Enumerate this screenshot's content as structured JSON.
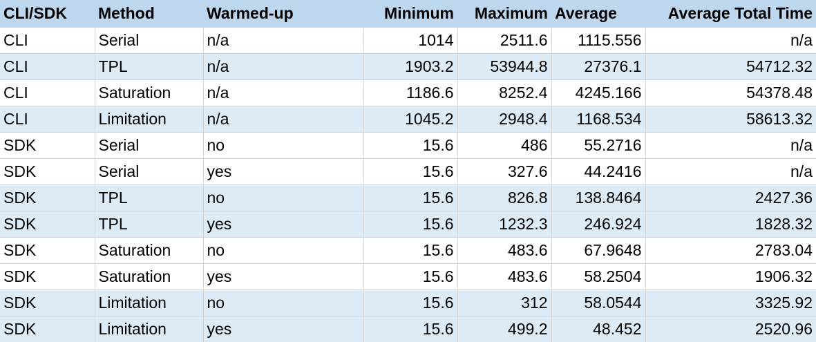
{
  "header": {
    "cols": [
      "CLI/SDK",
      "Method",
      "Warmed-up",
      "Minimum",
      "Maximum",
      "Average",
      "Average Total Time"
    ]
  },
  "rows": [
    {
      "cli_sdk": "CLI",
      "method": "Serial",
      "warmed": "n/a",
      "min": "1014",
      "max": "2511.6",
      "avg": "1115.556",
      "total": "n/a",
      "band": "white"
    },
    {
      "cli_sdk": "CLI",
      "method": "TPL",
      "warmed": "n/a",
      "min": "1903.2",
      "max": "53944.8",
      "avg": "27376.1",
      "total": "54712.32",
      "band": "blue"
    },
    {
      "cli_sdk": "CLI",
      "method": "Saturation",
      "warmed": "n/a",
      "min": "1186.6",
      "max": "8252.4",
      "avg": "4245.166",
      "total": "54378.48",
      "band": "white"
    },
    {
      "cli_sdk": "CLI",
      "method": "Limitation",
      "warmed": "n/a",
      "min": "1045.2",
      "max": "2948.4",
      "avg": "1168.534",
      "total": "58613.32",
      "band": "blue"
    },
    {
      "cli_sdk": "SDK",
      "method": "Serial",
      "warmed": "no",
      "min": "15.6",
      "max": "486",
      "avg": "55.2716",
      "total": "n/a",
      "band": "white"
    },
    {
      "cli_sdk": "SDK",
      "method": "Serial",
      "warmed": "yes",
      "min": "15.6",
      "max": "327.6",
      "avg": "44.2416",
      "total": "n/a",
      "band": "white"
    },
    {
      "cli_sdk": "SDK",
      "method": "TPL",
      "warmed": "no",
      "min": "15.6",
      "max": "826.8",
      "avg": "138.8464",
      "total": "2427.36",
      "band": "blue"
    },
    {
      "cli_sdk": "SDK",
      "method": "TPL",
      "warmed": "yes",
      "min": "15.6",
      "max": "1232.3",
      "avg": "246.924",
      "total": "1828.32",
      "band": "blue"
    },
    {
      "cli_sdk": "SDK",
      "method": "Saturation",
      "warmed": "no",
      "min": "15.6",
      "max": "483.6",
      "avg": "67.9648",
      "total": "2783.04",
      "band": "white"
    },
    {
      "cli_sdk": "SDK",
      "method": "Saturation",
      "warmed": "yes",
      "min": "15.6",
      "max": "483.6",
      "avg": "58.2504",
      "total": "1906.32",
      "band": "white"
    },
    {
      "cli_sdk": "SDK",
      "method": "Limitation",
      "warmed": "no",
      "min": "15.6",
      "max": "312",
      "avg": "58.0544",
      "total": "3325.92",
      "band": "blue"
    },
    {
      "cli_sdk": "SDK",
      "method": "Limitation",
      "warmed": "yes",
      "min": "15.6",
      "max": "499.2",
      "avg": "48.452",
      "total": "2520.96",
      "band": "blue"
    }
  ],
  "colors": {
    "header_bg": "#bdd7ee",
    "band_blue": "#ddebf7",
    "band_white": "#ffffff",
    "grid_line": "#d4d4d4"
  }
}
